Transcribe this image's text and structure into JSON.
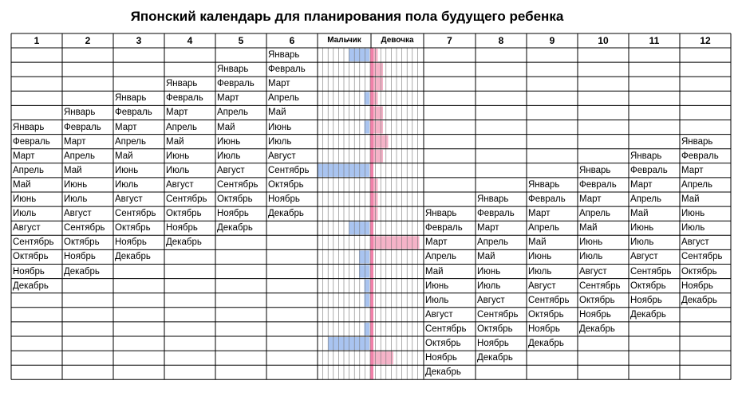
{
  "title": "Японский календарь для планирования пола будущего ребенка",
  "headers": {
    "columns": [
      "1",
      "2",
      "3",
      "4",
      "5",
      "6",
      "7",
      "8",
      "9",
      "10",
      "11",
      "12"
    ],
    "boy": "Мальчик",
    "girl": "Девочка"
  },
  "months": [
    "Январь",
    "Февраль",
    "Март",
    "Апрель",
    "Май",
    "Июнь",
    "Июль",
    "Август",
    "Сентябрь",
    "Октябрь",
    "Ноябрь",
    "Декабрь"
  ],
  "column_start_rows": [
    6,
    5,
    4,
    3,
    2,
    1,
    12,
    11,
    10,
    9,
    8,
    7
  ],
  "bars": [
    {
      "boy": 4,
      "girl": 1
    },
    {
      "boy": 0,
      "girl": 2
    },
    {
      "boy": 0,
      "girl": 2
    },
    {
      "boy": 1,
      "girl": 1
    },
    {
      "boy": 0,
      "girl": 2
    },
    {
      "boy": 1,
      "girl": 2
    },
    {
      "boy": 0,
      "girl": 3
    },
    {
      "boy": 0,
      "girl": 2
    },
    {
      "boy": 10,
      "girl": 0
    },
    {
      "boy": 0,
      "girl": 1
    },
    {
      "boy": 0,
      "girl": 1
    },
    {
      "boy": 0,
      "girl": 1
    },
    {
      "boy": 4,
      "girl": 0
    },
    {
      "boy": 0,
      "girl": 9
    },
    {
      "boy": 2,
      "girl": 0
    },
    {
      "boy": 2,
      "girl": 0
    },
    {
      "boy": 1,
      "girl": 0
    },
    {
      "boy": 1,
      "girl": 0
    },
    {
      "boy": 0,
      "girl": 0
    },
    {
      "boy": 1,
      "girl": 0
    },
    {
      "boy": 8,
      "girl": 0
    },
    {
      "boy": 0,
      "girl": 4
    },
    {
      "boy": 0,
      "girl": 0
    }
  ],
  "colors": {
    "boy_bar": "#a9c4f0",
    "girl_bar": "#f5b3c8",
    "pink_line": "#f080a8",
    "grid": "#000000",
    "thin_grid": "#777777"
  }
}
